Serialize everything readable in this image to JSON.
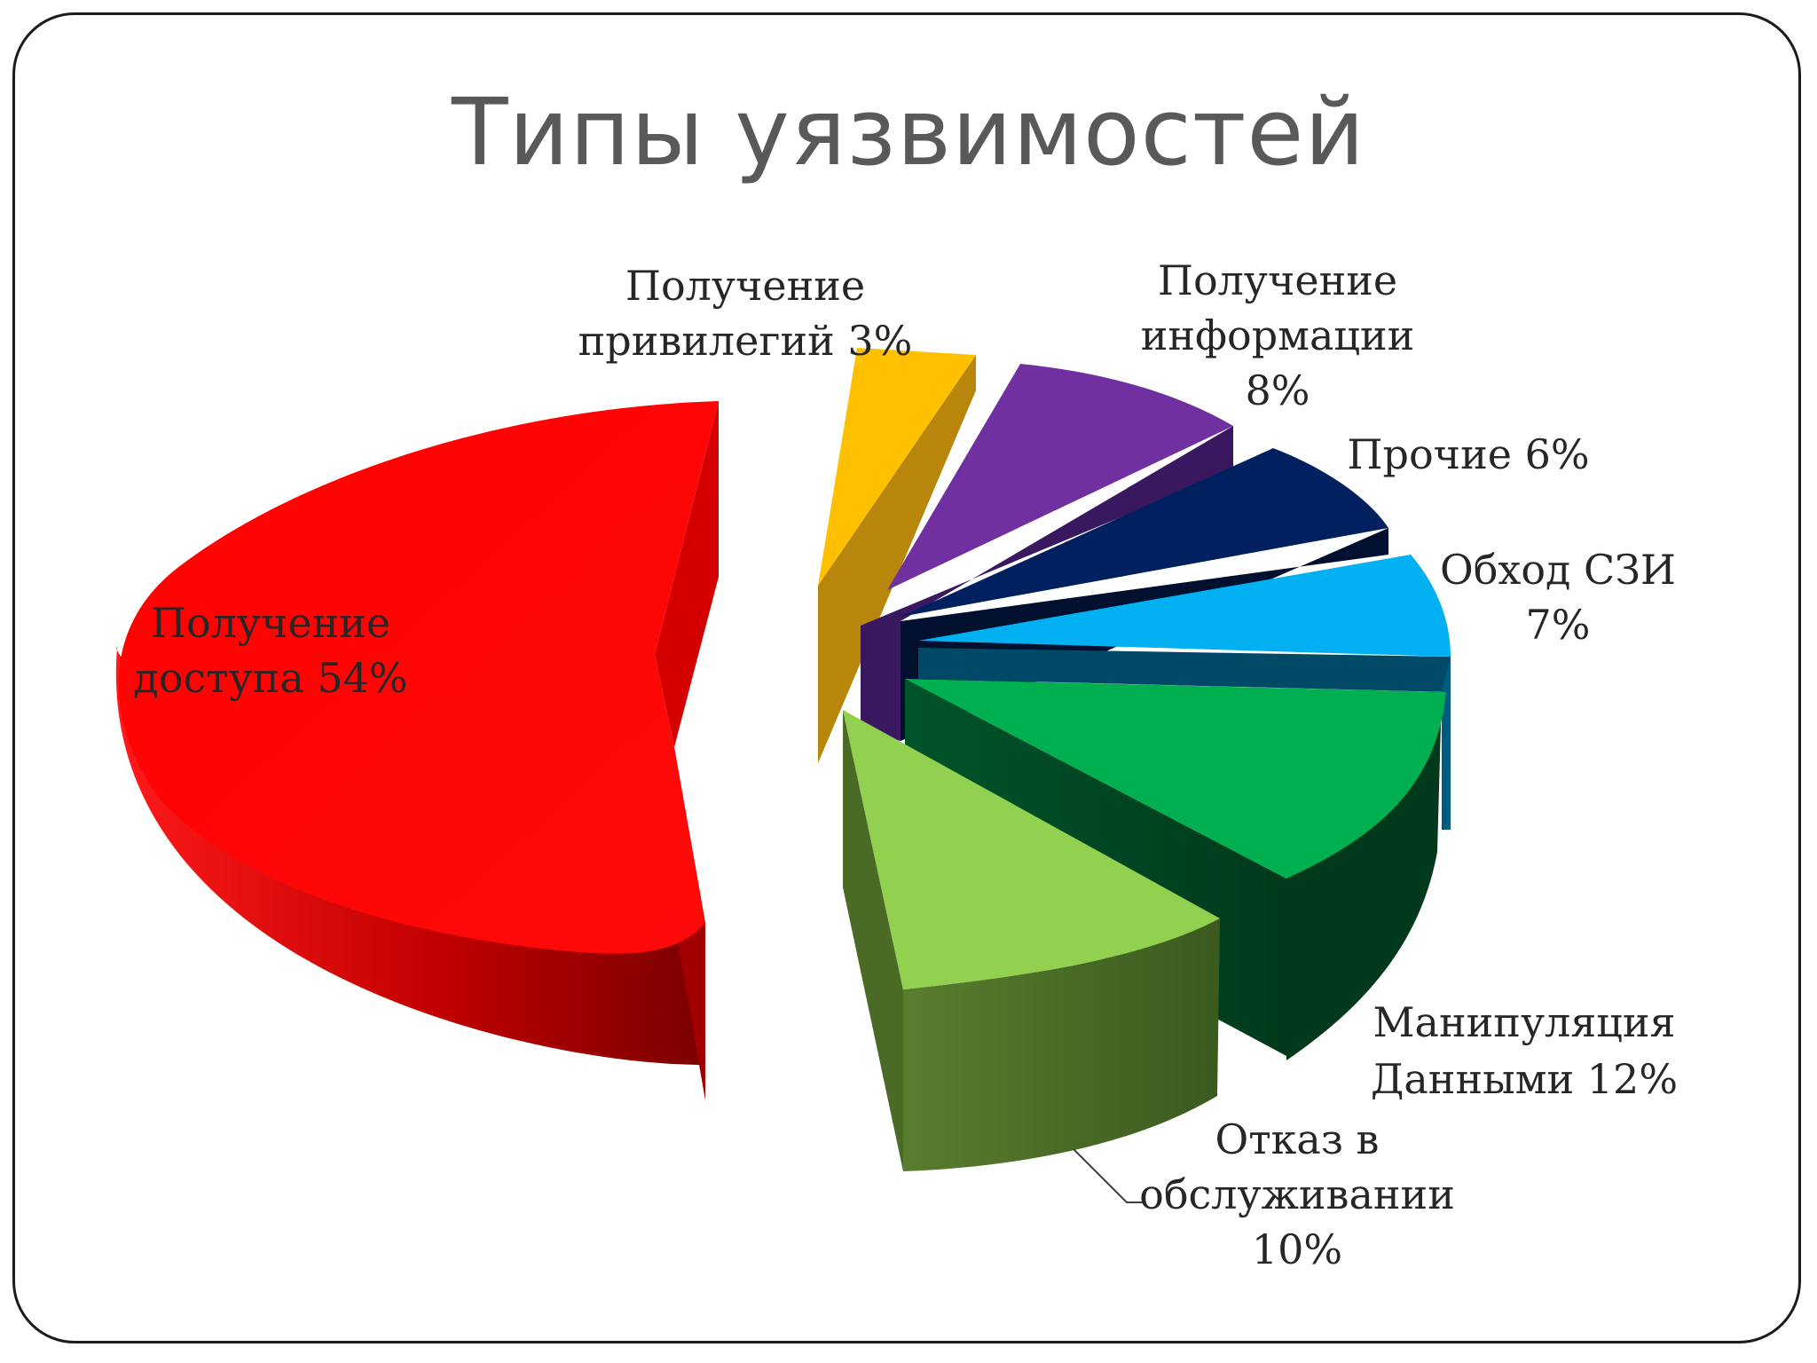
{
  "slide": {
    "title": "Типы уязвимостей"
  },
  "chart_data": {
    "type": "pie",
    "style": "3d-exploded",
    "title": "Типы уязвимостей",
    "slices": [
      {
        "key": "access",
        "label_lines": [
          "Получение",
          "доступа 54%"
        ],
        "value": 54,
        "color": "#ff0000"
      },
      {
        "key": "privileges",
        "label_lines": [
          "Получение",
          "привилегий 3%"
        ],
        "value": 3,
        "color": "#ffc000"
      },
      {
        "key": "info",
        "label_lines": [
          "Получение",
          "информации",
          "8%"
        ],
        "value": 8,
        "color": "#7030a0"
      },
      {
        "key": "other",
        "label_lines": [
          "Прочие  6%"
        ],
        "value": 6,
        "color": "#002060"
      },
      {
        "key": "bypass",
        "label_lines": [
          "Обход СЗИ",
          "7%"
        ],
        "value": 7,
        "color": "#00b0f0"
      },
      {
        "key": "data",
        "label_lines": [
          "Манипуляция",
          "Данными 12%"
        ],
        "value": 12,
        "color": "#00b050"
      },
      {
        "key": "dos",
        "label_lines": [
          "Отказ в",
          "обслуживании",
          "10%"
        ],
        "value": 10,
        "color": "#92d050"
      }
    ]
  }
}
